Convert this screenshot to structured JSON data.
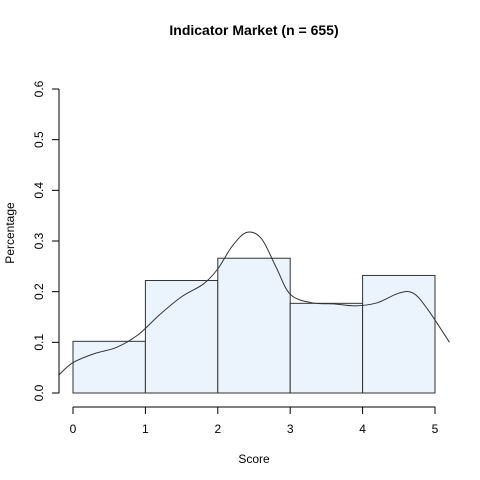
{
  "chart_data": {
    "type": "bar",
    "title": "Indicator Market (n = 655)",
    "xlabel": "Score",
    "ylabel": "Percentage",
    "xlim": [
      0,
      5
    ],
    "ylim": [
      0,
      0.6
    ],
    "x_ticks": [
      "0",
      "1",
      "2",
      "3",
      "4",
      "5"
    ],
    "y_ticks": [
      "0.0",
      "0.1",
      "0.2",
      "0.3",
      "0.4",
      "0.5",
      "0.6"
    ],
    "bins": [
      {
        "from": 0,
        "to": 1,
        "value": 0.102
      },
      {
        "from": 1,
        "to": 2,
        "value": 0.222
      },
      {
        "from": 2,
        "to": 3,
        "value": 0.266
      },
      {
        "from": 3,
        "to": 4,
        "value": 0.177
      },
      {
        "from": 4,
        "to": 5,
        "value": 0.232
      }
    ],
    "density": {
      "x": [
        -0.2,
        0.0,
        0.3,
        0.6,
        0.9,
        1.2,
        1.5,
        1.8,
        2.0,
        2.2,
        2.4,
        2.6,
        2.8,
        3.0,
        3.3,
        3.6,
        3.9,
        4.2,
        4.5,
        4.7,
        4.9,
        5.2
      ],
      "y": [
        0.035,
        0.06,
        0.078,
        0.09,
        0.115,
        0.155,
        0.19,
        0.215,
        0.245,
        0.29,
        0.317,
        0.305,
        0.25,
        0.195,
        0.178,
        0.176,
        0.172,
        0.178,
        0.197,
        0.197,
        0.165,
        0.1
      ]
    },
    "colors": {
      "bar_fill": "#ebf4fc",
      "bar_stroke": "#333333",
      "line": "#333333",
      "axis": "#000000"
    },
    "grid": false,
    "legend": "none"
  }
}
